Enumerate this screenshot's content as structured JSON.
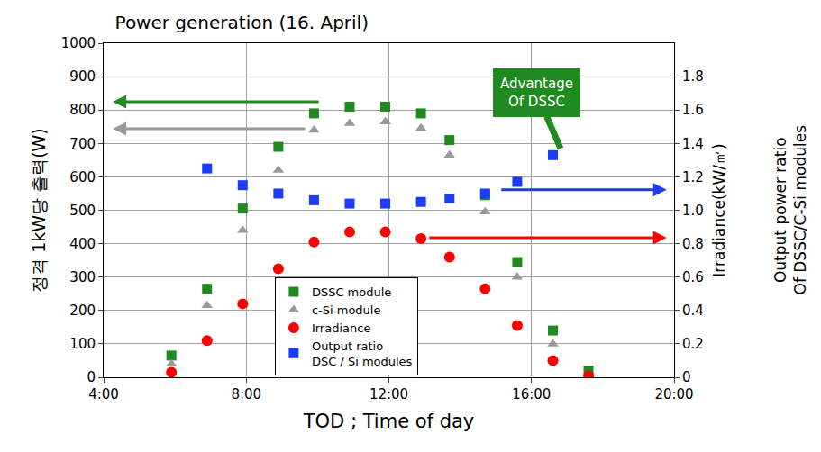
{
  "chart_data": {
    "type": "scatter",
    "title": "Power generation (16. April)",
    "x_label": "TOD ; Time of day",
    "y_label": "정격 1kW당 출력(W)",
    "y2_labels": [
      "Irradiance(kW/㎡)",
      "Output power ratio\nOf DSSC/C-Si modules"
    ],
    "x": [
      5.9,
      6.9,
      7.9,
      8.9,
      9.9,
      10.9,
      11.9,
      12.9,
      13.7,
      14.7,
      15.6,
      16.6,
      17.6
    ],
    "xlim": [
      4,
      20
    ],
    "xticks": [
      {
        "value": 4,
        "label": "4:00"
      },
      {
        "value": 8,
        "label": "8:00"
      },
      {
        "value": 12,
        "label": "12:00"
      },
      {
        "value": 16,
        "label": "16:00"
      },
      {
        "value": 20,
        "label": "20:00"
      }
    ],
    "ylim": [
      0,
      1000
    ],
    "yticks": [
      0,
      100,
      200,
      300,
      400,
      500,
      600,
      700,
      800,
      900,
      1000
    ],
    "y2lim": [
      0,
      2
    ],
    "y2ticks": [
      0,
      0.2,
      0.4,
      0.6,
      0.8,
      {
        "value": 1,
        "label": "1.0"
      },
      1.2,
      1.4,
      1.6,
      1.8
    ],
    "grid": true,
    "legend": "bottom",
    "series": [
      {
        "name": "DSSC module",
        "color": "#1f8a1f",
        "marker": "square",
        "values": [
          65,
          265,
          505,
          690,
          790,
          810,
          810,
          790,
          710,
          545,
          345,
          140,
          20
        ]
      },
      {
        "name": "c-Si module",
        "color": "#9a9a9a",
        "marker": "triangle-up",
        "values": [
          40,
          215,
          440,
          620,
          740,
          760,
          765,
          745,
          665,
          495,
          300,
          100,
          0
        ]
      },
      {
        "name": "Irradiance",
        "color": "#ff0000",
        "marker": "circle",
        "axis": "y2",
        "values": [
          0.03,
          0.22,
          0.44,
          0.65,
          0.81,
          0.87,
          0.87,
          0.83,
          0.72,
          0.53,
          0.31,
          0.1,
          0.01
        ]
      },
      {
        "name": "Output ratio\nDSC / Si modules",
        "color": "#1a3cff",
        "marker": "square",
        "axis": "y2",
        "values": [
          null,
          1.25,
          1.15,
          1.1,
          1.06,
          1.04,
          1.04,
          1.05,
          1.07,
          1.1,
          1.17,
          1.33,
          null
        ]
      }
    ],
    "annotations": [
      {
        "text": "Advantage\nOf DSSC"
      }
    ]
  }
}
